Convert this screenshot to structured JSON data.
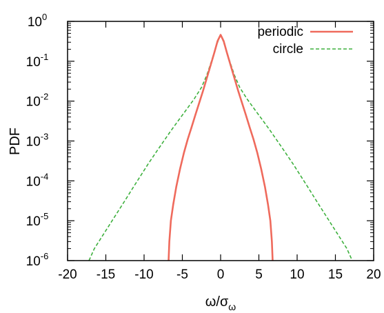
{
  "chart_data": {
    "type": "line",
    "title": "",
    "xlabel": "ω/σω",
    "xlabel_base": "ω/σ",
    "xlabel_sub": "ω",
    "ylabel": "PDF",
    "xlim": [
      -20,
      20
    ],
    "ylim": [
      1e-06,
      1
    ],
    "yscale": "log",
    "grid": false,
    "legend_position": "top-right",
    "x_ticks": [
      -20,
      -15,
      -10,
      -5,
      0,
      5,
      10,
      15,
      20
    ],
    "x_tick_labels": [
      "-20",
      "-15",
      "-10",
      "-5",
      "0",
      "5",
      "10",
      "15",
      "20"
    ],
    "y_ticks": [
      {
        "value": 1.0,
        "base": "10",
        "exp": "0"
      },
      {
        "value": 0.1,
        "base": "10",
        "exp": "-1"
      },
      {
        "value": 0.01,
        "base": "10",
        "exp": "-2"
      },
      {
        "value": 0.001,
        "base": "10",
        "exp": "-3"
      },
      {
        "value": 0.0001,
        "base": "10",
        "exp": "-4"
      },
      {
        "value": 1e-05,
        "base": "10",
        "exp": "-5"
      },
      {
        "value": 1e-06,
        "base": "10",
        "exp": "-6"
      }
    ],
    "series": [
      {
        "name": "periodic",
        "color": "#ef6a5c",
        "style": "solid",
        "points": [
          [
            -6.8,
            1e-06
          ],
          [
            -6.7,
            3e-06
          ],
          [
            -6.5,
            1e-05
          ],
          [
            -6.2,
            2.5e-05
          ],
          [
            -5.8,
            7e-05
          ],
          [
            -5.3,
            0.0002
          ],
          [
            -4.8,
            0.0005
          ],
          [
            -4.3,
            0.0011
          ],
          [
            -3.8,
            0.0022
          ],
          [
            -3.3,
            0.0045
          ],
          [
            -2.8,
            0.009
          ],
          [
            -2.3,
            0.018
          ],
          [
            -1.8,
            0.038
          ],
          [
            -1.3,
            0.08
          ],
          [
            -0.8,
            0.17
          ],
          [
            -0.4,
            0.32
          ],
          [
            0,
            0.46
          ],
          [
            0.4,
            0.32
          ],
          [
            0.8,
            0.17
          ],
          [
            1.3,
            0.08
          ],
          [
            1.8,
            0.038
          ],
          [
            2.3,
            0.018
          ],
          [
            2.8,
            0.009
          ],
          [
            3.3,
            0.0045
          ],
          [
            3.8,
            0.0022
          ],
          [
            4.3,
            0.0011
          ],
          [
            4.8,
            0.0005
          ],
          [
            5.3,
            0.0002
          ],
          [
            5.8,
            7e-05
          ],
          [
            6.2,
            2.5e-05
          ],
          [
            6.5,
            1e-05
          ],
          [
            6.7,
            3e-06
          ],
          [
            6.8,
            1e-06
          ]
        ]
      },
      {
        "name": "circle",
        "color": "#3db03d",
        "style": "dashed",
        "points": [
          [
            -17.2,
            1e-06
          ],
          [
            -16.5,
            2e-06
          ],
          [
            -15.5,
            4e-06
          ],
          [
            -14.5,
            8e-06
          ],
          [
            -13.5,
            1.6e-05
          ],
          [
            -12.5,
            3.2e-05
          ],
          [
            -11.5,
            6.5e-05
          ],
          [
            -10.5,
            0.00013
          ],
          [
            -9.5,
            0.00026
          ],
          [
            -8.5,
            0.0005
          ],
          [
            -7.5,
            0.00095
          ],
          [
            -6.5,
            0.0018
          ],
          [
            -5.5,
            0.0033
          ],
          [
            -4.5,
            0.006
          ],
          [
            -3.5,
            0.011
          ],
          [
            -2.5,
            0.022
          ],
          [
            -1.8,
            0.045
          ],
          [
            -1.2,
            0.1
          ],
          [
            -0.6,
            0.23
          ],
          [
            -0.2,
            0.38
          ],
          [
            0,
            0.44
          ],
          [
            0.2,
            0.38
          ],
          [
            0.6,
            0.23
          ],
          [
            1.2,
            0.1
          ],
          [
            1.8,
            0.045
          ],
          [
            2.5,
            0.022
          ],
          [
            3.5,
            0.011
          ],
          [
            4.5,
            0.006
          ],
          [
            5.5,
            0.0033
          ],
          [
            6.5,
            0.0018
          ],
          [
            7.5,
            0.00095
          ],
          [
            8.5,
            0.0005
          ],
          [
            9.5,
            0.00026
          ],
          [
            10.5,
            0.00013
          ],
          [
            11.5,
            6.5e-05
          ],
          [
            12.5,
            3.2e-05
          ],
          [
            13.5,
            1.6e-05
          ],
          [
            14.5,
            8e-06
          ],
          [
            15.5,
            4e-06
          ],
          [
            16.5,
            2e-06
          ],
          [
            17.2,
            1e-06
          ]
        ]
      }
    ]
  }
}
